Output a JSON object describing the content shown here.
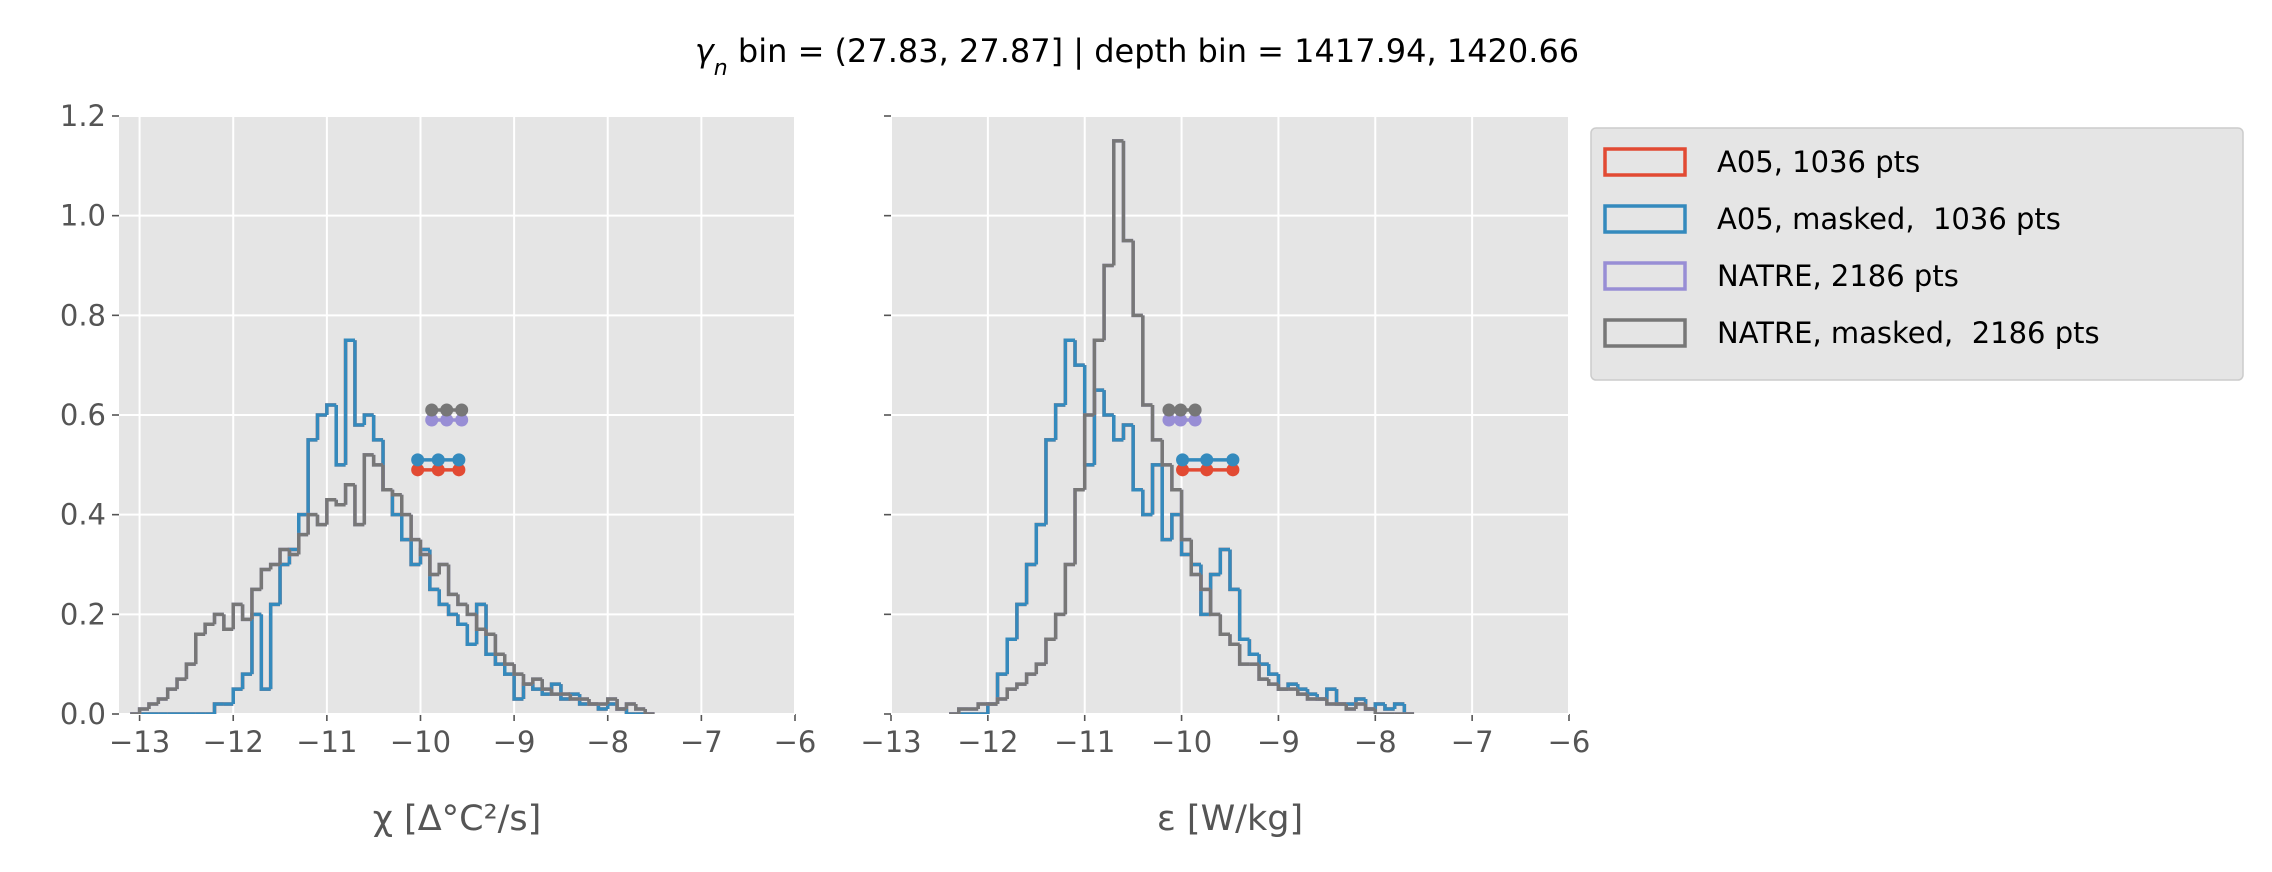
{
  "title_symbol": "γ",
  "title_subscript": "n",
  "title_text": " bin = (27.83, 27.87] | depth bin = 1417.94, 1420.66",
  "chart_data": [
    {
      "type": "histogram",
      "xlabel": "χ [Δ°C²/s]",
      "xlim": [
        -13.22,
        -6
      ],
      "ylim": [
        0,
        1.2
      ],
      "xticks": [
        {
          "value": -13,
          "label": "−13"
        },
        {
          "value": -12,
          "label": "−12"
        },
        {
          "value": -11,
          "label": "−11"
        },
        {
          "value": -10,
          "label": "−10"
        },
        {
          "value": -9,
          "label": "−9"
        },
        {
          "value": -8,
          "label": "−8"
        },
        {
          "value": -7,
          "label": "−7"
        },
        {
          "value": -6,
          "label": "−6"
        }
      ],
      "yticks": [
        {
          "value": 0,
          "label": "0.0"
        },
        0.2,
        0.4,
        0.6,
        0.8,
        {
          "value": 1,
          "label": "1.0"
        },
        1.2
      ],
      "grid": true,
      "bins": [
        -13.1,
        -13.0,
        -12.9,
        -12.8,
        -12.7,
        -12.6,
        -12.5,
        -12.4,
        -12.3,
        -12.2,
        -12.1,
        -12.0,
        -11.9,
        -11.8,
        -11.7,
        -11.6,
        -11.5,
        -11.4,
        -11.3,
        -11.2,
        -11.1,
        -11.0,
        -10.9,
        -10.8,
        -10.7,
        -10.6,
        -10.5,
        -10.4,
        -10.3,
        -10.2,
        -10.1,
        -10.0,
        -9.9,
        -9.8,
        -9.7,
        -9.6,
        -9.5,
        -9.4,
        -9.3,
        -9.2,
        -9.1,
        -9.0,
        -8.9,
        -8.8,
        -8.7,
        -8.6,
        -8.5,
        -8.4,
        -8.3,
        -8.2,
        -8.1,
        -8.0,
        -7.9,
        -7.8,
        -7.7,
        -7.6,
        -7.5
      ],
      "series": [
        {
          "color": "#E24A33",
          "values": [
            0,
            0,
            0,
            0,
            0,
            0,
            0,
            0,
            0,
            0.02,
            0.02,
            0.05,
            0.08,
            0.2,
            0.05,
            0.22,
            0.3,
            0.33,
            0.4,
            0.55,
            0.6,
            0.62,
            0.5,
            0.75,
            0.58,
            0.6,
            0.55,
            0.45,
            0.4,
            0.35,
            0.3,
            0.33,
            0.25,
            0.22,
            0.2,
            0.18,
            0.14,
            0.22,
            0.12,
            0.1,
            0.08,
            0.03,
            0.06,
            0.05,
            0.04,
            0.06,
            0.03,
            0.04,
            0.02,
            0.02,
            0.01,
            0.02,
            0.01,
            0,
            0,
            0
          ],
          "marker_x": [
            -10.03,
            -9.81,
            -9.59
          ],
          "marker_y": [
            0.49,
            0.49,
            0.49
          ]
        },
        {
          "color": "#348ABD",
          "values": [
            0,
            0,
            0,
            0,
            0,
            0,
            0,
            0,
            0,
            0.02,
            0.02,
            0.05,
            0.08,
            0.2,
            0.05,
            0.22,
            0.3,
            0.33,
            0.4,
            0.55,
            0.6,
            0.62,
            0.5,
            0.75,
            0.58,
            0.6,
            0.55,
            0.45,
            0.4,
            0.35,
            0.3,
            0.33,
            0.25,
            0.22,
            0.2,
            0.18,
            0.14,
            0.22,
            0.12,
            0.1,
            0.08,
            0.03,
            0.06,
            0.05,
            0.04,
            0.06,
            0.03,
            0.04,
            0.02,
            0.02,
            0.01,
            0.02,
            0.01,
            0,
            0,
            0
          ],
          "marker_x": [
            -10.03,
            -9.81,
            -9.59
          ],
          "marker_y": [
            0.51,
            0.51,
            0.51
          ]
        },
        {
          "color": "#988ED5",
          "values": [
            0,
            0.01,
            0.02,
            0.03,
            0.05,
            0.07,
            0.1,
            0.16,
            0.18,
            0.2,
            0.17,
            0.22,
            0.19,
            0.25,
            0.29,
            0.3,
            0.33,
            0.32,
            0.36,
            0.4,
            0.38,
            0.43,
            0.42,
            0.46,
            0.38,
            0.52,
            0.5,
            0.45,
            0.44,
            0.4,
            0.35,
            0.32,
            0.28,
            0.3,
            0.24,
            0.22,
            0.2,
            0.17,
            0.16,
            0.12,
            0.1,
            0.08,
            0.06,
            0.07,
            0.05,
            0.04,
            0.04,
            0.03,
            0.03,
            0.02,
            0.02,
            0.03,
            0.01,
            0.02,
            0.01,
            0
          ],
          "marker_x": [
            -9.88,
            -9.72,
            -9.56
          ],
          "marker_y": [
            0.59,
            0.59,
            0.59
          ]
        },
        {
          "color": "#777777",
          "values": [
            0,
            0.01,
            0.02,
            0.03,
            0.05,
            0.07,
            0.1,
            0.16,
            0.18,
            0.2,
            0.17,
            0.22,
            0.19,
            0.25,
            0.29,
            0.3,
            0.33,
            0.32,
            0.36,
            0.4,
            0.38,
            0.43,
            0.42,
            0.46,
            0.38,
            0.52,
            0.5,
            0.45,
            0.44,
            0.4,
            0.35,
            0.32,
            0.28,
            0.3,
            0.24,
            0.22,
            0.2,
            0.17,
            0.16,
            0.12,
            0.1,
            0.08,
            0.06,
            0.07,
            0.05,
            0.04,
            0.04,
            0.03,
            0.03,
            0.02,
            0.02,
            0.03,
            0.01,
            0.02,
            0.01,
            0
          ],
          "marker_x": [
            -9.88,
            -9.72,
            -9.56
          ],
          "marker_y": [
            0.61,
            0.61,
            0.61
          ]
        }
      ]
    },
    {
      "type": "histogram",
      "xlabel": "ε [W/kg]",
      "xlim": [
        -13,
        -6
      ],
      "ylim": [
        0,
        1.2
      ],
      "xticks": [
        {
          "value": -13,
          "label": "−13"
        },
        {
          "value": -12,
          "label": "−12"
        },
        {
          "value": -11,
          "label": "−11"
        },
        {
          "value": -10,
          "label": "−10"
        },
        {
          "value": -9,
          "label": "−9"
        },
        {
          "value": -8,
          "label": "−8"
        },
        {
          "value": -7,
          "label": "−7"
        },
        {
          "value": -6,
          "label": "−6"
        }
      ],
      "yticks": [
        0,
        0.2,
        0.4,
        0.6,
        0.8,
        1,
        1.2
      ],
      "grid": true,
      "legend": "outside upper right",
      "bins": [
        -12.4,
        -12.3,
        -12.2,
        -12.1,
        -12.0,
        -11.9,
        -11.8,
        -11.7,
        -11.6,
        -11.5,
        -11.4,
        -11.3,
        -11.2,
        -11.1,
        -11.0,
        -10.9,
        -10.8,
        -10.7,
        -10.6,
        -10.5,
        -10.4,
        -10.3,
        -10.2,
        -10.1,
        -10.0,
        -9.9,
        -9.8,
        -9.7,
        -9.6,
        -9.5,
        -9.4,
        -9.3,
        -9.2,
        -9.1,
        -9.0,
        -8.9,
        -8.8,
        -8.7,
        -8.6,
        -8.5,
        -8.4,
        -8.3,
        -8.2,
        -8.1,
        -8.0,
        -7.9,
        -7.8,
        -7.7,
        -7.6
      ],
      "series": [
        {
          "name": "A05, 1036 pts",
          "color": "#E24A33",
          "values": [
            0,
            0,
            0,
            0,
            0.02,
            0.08,
            0.15,
            0.22,
            0.3,
            0.38,
            0.55,
            0.62,
            0.75,
            0.7,
            0.5,
            0.65,
            0.6,
            0.55,
            0.58,
            0.45,
            0.4,
            0.5,
            0.35,
            0.4,
            0.32,
            0.3,
            0.2,
            0.28,
            0.33,
            0.25,
            0.15,
            0.12,
            0.1,
            0.08,
            0.05,
            0.06,
            0.05,
            0.04,
            0.03,
            0.05,
            0.02,
            0.02,
            0.03,
            0.01,
            0.02,
            0.01,
            0.02,
            0
          ],
          "marker_x": [
            -9.99,
            -9.74,
            -9.47
          ],
          "marker_y": [
            0.49,
            0.49,
            0.49
          ]
        },
        {
          "name": "A05, masked,  1036 pts",
          "color": "#348ABD",
          "values": [
            0,
            0,
            0,
            0,
            0.02,
            0.08,
            0.15,
            0.22,
            0.3,
            0.38,
            0.55,
            0.62,
            0.75,
            0.7,
            0.5,
            0.65,
            0.6,
            0.55,
            0.58,
            0.45,
            0.4,
            0.5,
            0.35,
            0.4,
            0.32,
            0.3,
            0.2,
            0.28,
            0.33,
            0.25,
            0.15,
            0.12,
            0.1,
            0.08,
            0.05,
            0.06,
            0.05,
            0.04,
            0.03,
            0.05,
            0.02,
            0.02,
            0.03,
            0.01,
            0.02,
            0.01,
            0.02,
            0
          ],
          "marker_x": [
            -9.99,
            -9.74,
            -9.47
          ],
          "marker_y": [
            0.51,
            0.51,
            0.51
          ]
        },
        {
          "name": "NATRE, 2186 pts",
          "color": "#988ED5",
          "values": [
            0,
            0.01,
            0.01,
            0.02,
            0.02,
            0.03,
            0.05,
            0.06,
            0.08,
            0.1,
            0.15,
            0.2,
            0.3,
            0.45,
            0.6,
            0.75,
            0.9,
            1.15,
            0.95,
            0.8,
            0.62,
            0.55,
            0.5,
            0.45,
            0.35,
            0.28,
            0.25,
            0.2,
            0.16,
            0.14,
            0.1,
            0.1,
            0.07,
            0.06,
            0.05,
            0.05,
            0.04,
            0.03,
            0.03,
            0.02,
            0.02,
            0.01,
            0.02,
            0.01,
            0,
            0,
            0,
            0
          ],
          "marker_x": [
            -10.13,
            -10.01,
            -9.86
          ],
          "marker_y": [
            0.59,
            0.59,
            0.59
          ]
        },
        {
          "name": "NATRE, masked,  2186 pts",
          "color": "#777777",
          "values": [
            0,
            0.01,
            0.01,
            0.02,
            0.02,
            0.03,
            0.05,
            0.06,
            0.08,
            0.1,
            0.15,
            0.2,
            0.3,
            0.45,
            0.6,
            0.75,
            0.9,
            1.15,
            0.95,
            0.8,
            0.62,
            0.55,
            0.5,
            0.45,
            0.35,
            0.28,
            0.25,
            0.2,
            0.16,
            0.14,
            0.1,
            0.1,
            0.07,
            0.06,
            0.05,
            0.05,
            0.04,
            0.03,
            0.03,
            0.02,
            0.02,
            0.01,
            0.02,
            0.01,
            0,
            0,
            0,
            0
          ],
          "marker_x": [
            -10.13,
            -10.01,
            -9.86
          ],
          "marker_y": [
            0.61,
            0.61,
            0.61
          ]
        }
      ]
    }
  ]
}
